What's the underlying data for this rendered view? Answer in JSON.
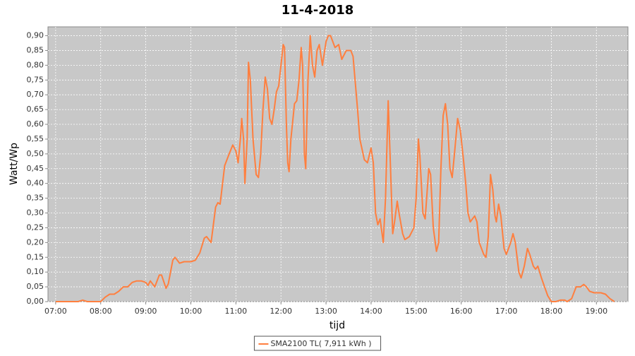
{
  "chart_data": {
    "type": "line",
    "title": "11-4-2018",
    "x_label": "tijd",
    "y_label": "Watt/Wp",
    "xlim": [
      6.83,
      19.7
    ],
    "ylim": [
      0,
      0.93
    ],
    "grid": true,
    "legend": "bottom",
    "xticks": [
      {
        "value": 7,
        "label": "07:00"
      },
      {
        "value": 8,
        "label": "08:00"
      },
      {
        "value": 9,
        "label": "09:00"
      },
      {
        "value": 10,
        "label": "10:00"
      },
      {
        "value": 11,
        "label": "11:00"
      },
      {
        "value": 12,
        "label": "12:00"
      },
      {
        "value": 13,
        "label": "13:00"
      },
      {
        "value": 14,
        "label": "14:00"
      },
      {
        "value": 15,
        "label": "15:00"
      },
      {
        "value": 16,
        "label": "16:00"
      },
      {
        "value": 17,
        "label": "17:00"
      },
      {
        "value": 18,
        "label": "18:00"
      },
      {
        "value": 19,
        "label": "19:00"
      }
    ],
    "yticks": [
      {
        "value": 0,
        "label": "0,00"
      },
      {
        "value": 0.05,
        "label": "0,05"
      },
      {
        "value": 0.1,
        "label": "0,10"
      },
      {
        "value": 0.15,
        "label": "0,15"
      },
      {
        "value": 0.2,
        "label": "0,20"
      },
      {
        "value": 0.25,
        "label": "0,25"
      },
      {
        "value": 0.3,
        "label": "0,30"
      },
      {
        "value": 0.35,
        "label": "0,35"
      },
      {
        "value": 0.4,
        "label": "0,40"
      },
      {
        "value": 0.45,
        "label": "0,45"
      },
      {
        "value": 0.5,
        "label": "0,50"
      },
      {
        "value": 0.55,
        "label": "0,55"
      },
      {
        "value": 0.6,
        "label": "0,60"
      },
      {
        "value": 0.65,
        "label": "0,65"
      },
      {
        "value": 0.7,
        "label": "0,70"
      },
      {
        "value": 0.75,
        "label": "0,75"
      },
      {
        "value": 0.8,
        "label": "0,80"
      },
      {
        "value": 0.85,
        "label": "0,85"
      },
      {
        "value": 0.9,
        "label": "0,90"
      }
    ],
    "series": [
      {
        "name": "SMA2100 TL( 7,911 kWh )",
        "color": "#ff7f3f",
        "x": [
          7.0,
          7.5,
          7.6,
          7.7,
          8.0,
          8.1,
          8.2,
          8.3,
          8.4,
          8.5,
          8.6,
          8.7,
          8.8,
          8.9,
          9.0,
          9.05,
          9.1,
          9.2,
          9.3,
          9.35,
          9.45,
          9.5,
          9.6,
          9.65,
          9.75,
          9.85,
          10.0,
          10.1,
          10.2,
          10.3,
          10.35,
          10.45,
          10.55,
          10.6,
          10.65,
          10.75,
          10.85,
          10.93,
          11.0,
          11.05,
          11.1,
          11.13,
          11.17,
          11.2,
          11.25,
          11.28,
          11.32,
          11.38,
          11.45,
          11.5,
          11.55,
          11.6,
          11.65,
          11.7,
          11.75,
          11.8,
          11.85,
          11.9,
          11.95,
          12.0,
          12.05,
          12.08,
          12.12,
          12.15,
          12.18,
          12.22,
          12.3,
          12.35,
          12.4,
          12.45,
          12.48,
          12.52,
          12.55,
          12.6,
          12.65,
          12.7,
          12.75,
          12.8,
          12.85,
          12.92,
          13.0,
          13.05,
          13.1,
          13.2,
          13.28,
          13.35,
          13.45,
          13.55,
          13.6,
          13.7,
          13.75,
          13.85,
          13.92,
          14.0,
          14.05,
          14.1,
          14.15,
          14.2,
          14.27,
          14.32,
          14.38,
          14.42,
          14.48,
          14.52,
          14.58,
          14.62,
          14.7,
          14.75,
          14.85,
          14.95,
          15.0,
          15.05,
          15.08,
          15.15,
          15.2,
          15.28,
          15.32,
          15.38,
          15.45,
          15.5,
          15.55,
          15.6,
          15.65,
          15.7,
          15.75,
          15.8,
          15.85,
          15.92,
          15.98,
          16.05,
          16.1,
          16.15,
          16.2,
          16.3,
          16.35,
          16.4,
          16.5,
          16.55,
          16.6,
          16.65,
          16.7,
          16.75,
          16.78,
          16.83,
          16.88,
          16.95,
          17.0,
          17.1,
          17.15,
          17.2,
          17.28,
          17.33,
          17.4,
          17.47,
          17.52,
          17.6,
          17.65,
          17.7,
          17.78,
          17.85,
          17.92,
          18.0,
          18.1,
          18.2,
          18.3,
          18.35,
          18.45,
          18.55,
          18.65,
          18.72,
          18.78,
          18.85,
          18.95,
          19.1,
          19.2,
          19.3,
          19.4
        ],
        "values": [
          0,
          0,
          0.005,
          0,
          0,
          0.015,
          0.025,
          0.025,
          0.035,
          0.05,
          0.05,
          0.065,
          0.07,
          0.07,
          0.065,
          0.055,
          0.07,
          0.05,
          0.09,
          0.09,
          0.045,
          0.06,
          0.14,
          0.15,
          0.13,
          0.135,
          0.135,
          0.14,
          0.165,
          0.215,
          0.22,
          0.2,
          0.32,
          0.335,
          0.33,
          0.46,
          0.5,
          0.53,
          0.51,
          0.47,
          0.55,
          0.62,
          0.55,
          0.4,
          0.55,
          0.81,
          0.75,
          0.55,
          0.43,
          0.42,
          0.5,
          0.65,
          0.76,
          0.72,
          0.62,
          0.6,
          0.65,
          0.71,
          0.73,
          0.8,
          0.87,
          0.86,
          0.6,
          0.47,
          0.44,
          0.55,
          0.67,
          0.68,
          0.75,
          0.86,
          0.8,
          0.5,
          0.45,
          0.75,
          0.9,
          0.8,
          0.76,
          0.85,
          0.87,
          0.8,
          0.88,
          0.9,
          0.9,
          0.86,
          0.87,
          0.82,
          0.85,
          0.85,
          0.83,
          0.65,
          0.55,
          0.48,
          0.47,
          0.52,
          0.47,
          0.3,
          0.26,
          0.28,
          0.2,
          0.35,
          0.68,
          0.5,
          0.23,
          0.27,
          0.34,
          0.3,
          0.23,
          0.21,
          0.22,
          0.25,
          0.35,
          0.55,
          0.5,
          0.3,
          0.28,
          0.45,
          0.43,
          0.25,
          0.17,
          0.2,
          0.45,
          0.63,
          0.67,
          0.6,
          0.45,
          0.42,
          0.5,
          0.62,
          0.58,
          0.48,
          0.4,
          0.3,
          0.27,
          0.29,
          0.27,
          0.2,
          0.16,
          0.15,
          0.22,
          0.43,
          0.38,
          0.29,
          0.27,
          0.33,
          0.29,
          0.18,
          0.16,
          0.2,
          0.23,
          0.2,
          0.1,
          0.08,
          0.12,
          0.18,
          0.16,
          0.12,
          0.11,
          0.12,
          0.08,
          0.05,
          0.02,
          0,
          0,
          0.005,
          0.005,
          0,
          0.01,
          0.05,
          0.05,
          0.058,
          0.05,
          0.035,
          0.03,
          0.03,
          0.025,
          0.01,
          0
        ]
      }
    ]
  }
}
